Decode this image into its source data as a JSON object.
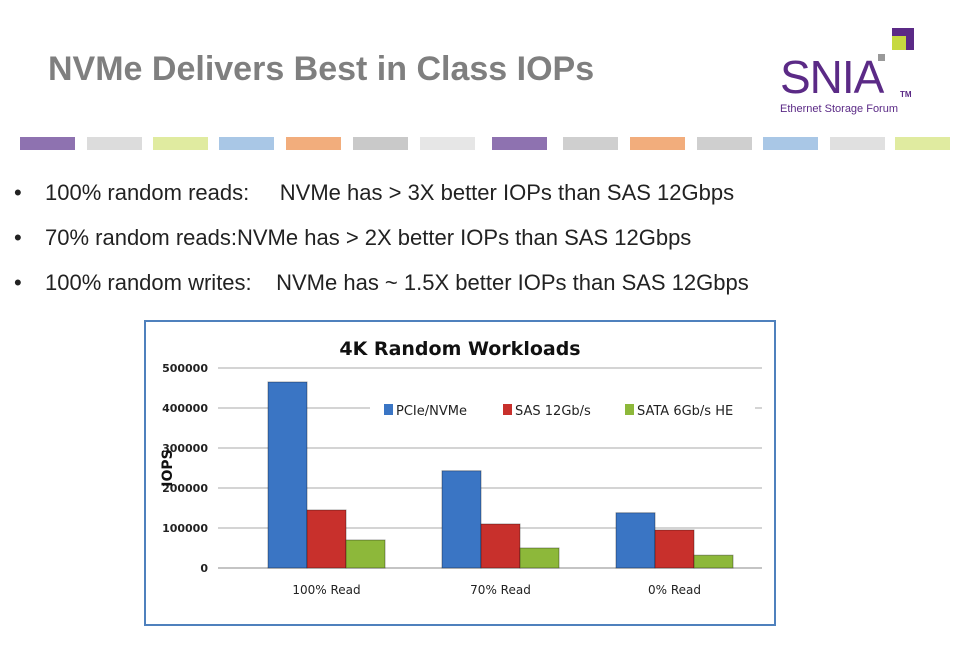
{
  "slide": {
    "title": "NVMe Delivers Best in Class IOPs",
    "logo": {
      "name": "SNIA",
      "tm": "TM",
      "subtitle": "Ethernet Storage Forum"
    },
    "strip_colors": [
      "#8e72b0",
      "#dcdcdc",
      "#e0eba0",
      "#a9c7e6",
      "#f2ad7c",
      "#c9c9c9",
      "#e6e6e6",
      "#8e72b0",
      "#cfcfcf",
      "#f2ad7c",
      "#cfcfcf",
      "#a9c7e6",
      "#e0e0e0",
      "#e0eba0"
    ],
    "bullets": [
      {
        "key": "100% random reads:     ",
        "text": "NVMe has > 3X better IOPs than SAS 12Gbps"
      },
      {
        "key": "70% random reads:",
        "text": "NVMe has > 2X better IOPs than SAS 12Gbps"
      },
      {
        "key": "100% random writes:    ",
        "text": "NVMe has ~ 1.5X better IOPs than SAS 12Gbps"
      }
    ],
    "bullet_glyph": "•"
  },
  "chart_data": {
    "type": "bar",
    "title": "4K Random Workloads",
    "xlabel": "",
    "ylabel": "IOPS",
    "ylim": [
      0,
      500000
    ],
    "yticks": [
      "0",
      "100000",
      "200000",
      "300000",
      "400000",
      "500000"
    ],
    "categories": [
      "100% Read",
      "70% Read",
      "0% Read"
    ],
    "legend_position": "top-right",
    "grid": true,
    "series": [
      {
        "name": "PCIe/NVMe",
        "color": "#3a75c4",
        "values": [
          465000,
          243000,
          138000
        ]
      },
      {
        "name": "SAS 12Gb/s",
        "color": "#c8302c",
        "values": [
          145000,
          110000,
          95000
        ]
      },
      {
        "name": "SATA 6Gb/s HE",
        "color": "#8db83a",
        "values": [
          70000,
          50000,
          32000
        ]
      }
    ]
  }
}
